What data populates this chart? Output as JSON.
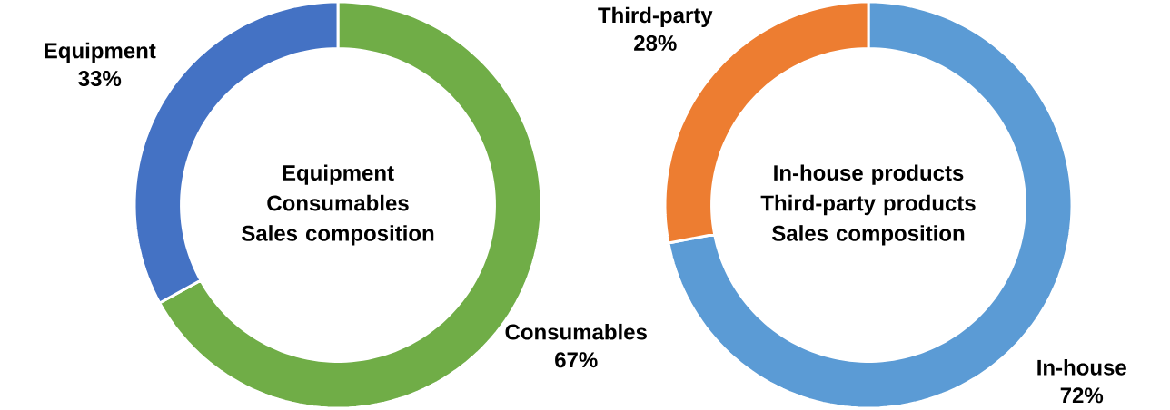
{
  "chart_data": [
    {
      "type": "donut",
      "title": "Equipment Consumables",
      "subtitle": "Sales composition",
      "categories": [
        "Consumables",
        "Equipment"
      ],
      "values": [
        67,
        33
      ],
      "colors": [
        "#70ad47",
        "#4472c4"
      ],
      "value_labels": [
        "67%",
        "33%"
      ]
    },
    {
      "type": "donut",
      "title": "In-house products Third-party products",
      "subtitle": "Sales composition",
      "categories": [
        "In-house",
        "Third-party"
      ],
      "values": [
        72,
        28
      ],
      "colors": [
        "#5b9bd5",
        "#ed7d31"
      ],
      "value_labels": [
        "72%",
        "28%"
      ]
    }
  ]
}
